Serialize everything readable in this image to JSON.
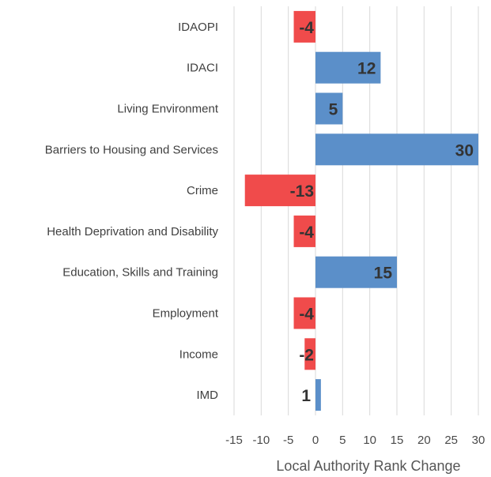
{
  "chart_data": {
    "type": "bar",
    "orientation": "horizontal",
    "categories": [
      "IDAOPI",
      "IDACI",
      "Living Environment",
      "Barriers to Housing and Services",
      "Crime",
      "Health Deprivation and Disability",
      "Education, Skills and Training",
      "Employment",
      "Income",
      "IMD"
    ],
    "values": [
      -4,
      12,
      5,
      30,
      -13,
      -4,
      15,
      -4,
      -2,
      1
    ],
    "data_labels": [
      "-4",
      "12",
      "5",
      "30",
      "-13",
      "-4",
      "15",
      "-4",
      "-2",
      "1"
    ],
    "xlabel": "Local Authority Rank Change",
    "ylabel": "",
    "xlim": [
      -15,
      30
    ],
    "xticks": [
      -15,
      -10,
      -5,
      0,
      5,
      10,
      15,
      20,
      25,
      30
    ],
    "grid": "vertical",
    "legend": "none",
    "colors": {
      "positive": "#5b8fc9",
      "negative": "#f04b4b",
      "grid": "#d9d9d9"
    }
  }
}
